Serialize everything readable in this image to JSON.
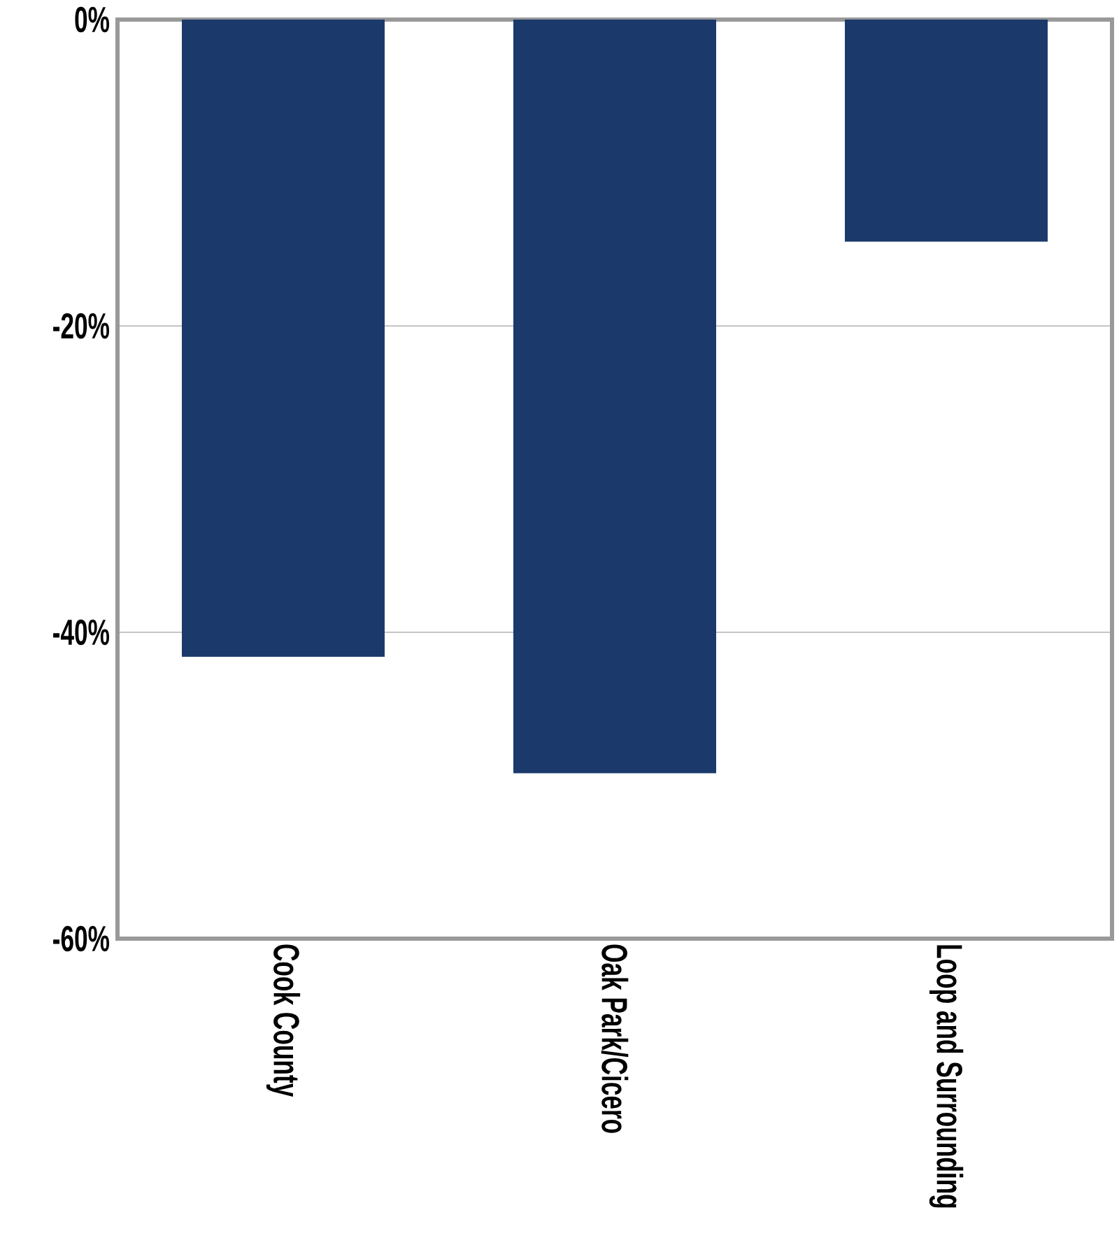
{
  "chart_data": {
    "type": "bar",
    "categories": [
      "Cook County",
      "Oak Park/Cicero",
      "Loop and Surrounding"
    ],
    "values": [
      -41.6,
      -49.2,
      -14.5
    ],
    "color": "#1b3a6b",
    "ylim": [
      -60,
      0
    ],
    "yticks": [
      {
        "value": -60,
        "label": "-60%"
      },
      {
        "value": -40,
        "label": "-40%"
      },
      {
        "value": -20,
        "label": "-20%"
      },
      {
        "value": 0,
        "label": "0%"
      }
    ],
    "grid": "y"
  }
}
